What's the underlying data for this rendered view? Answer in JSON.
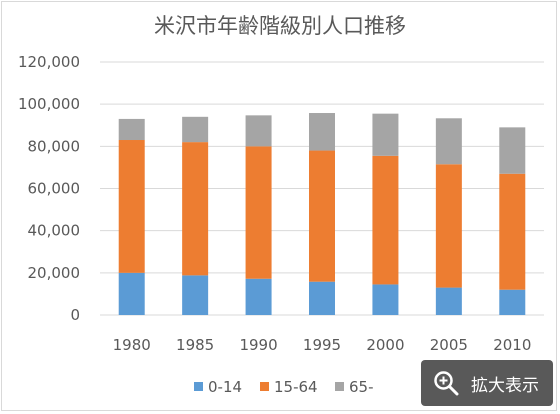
{
  "chart_data": {
    "type": "bar",
    "stacked": true,
    "title": "米沢市年齢階級別人口推移",
    "categories": [
      "1980",
      "1985",
      "1990",
      "1995",
      "2000",
      "2005",
      "2010"
    ],
    "series": [
      {
        "name": "0-14",
        "color": "#5b9bd5",
        "values": [
          20000,
          18800,
          17200,
          15800,
          14500,
          13000,
          12000
        ]
      },
      {
        "name": "15-64",
        "color": "#ed7d31",
        "values": [
          63000,
          63200,
          62800,
          62200,
          61000,
          58500,
          55000
        ]
      },
      {
        "name": "65-",
        "color": "#a5a5a5",
        "values": [
          10000,
          12000,
          14700,
          17800,
          20000,
          21800,
          22000
        ]
      }
    ],
    "ylim": [
      0,
      120000
    ],
    "yticks": [
      0,
      20000,
      40000,
      60000,
      80000,
      100000,
      120000
    ],
    "ytick_labels": [
      "0",
      "20,000",
      "40,000",
      "60,000",
      "80,000",
      "100,000",
      "120,000"
    ],
    "grid": true,
    "legend_position": "bottom"
  },
  "ui": {
    "zoom_label": "拡大表示",
    "zoom_icon": "magnifier-plus-icon"
  }
}
